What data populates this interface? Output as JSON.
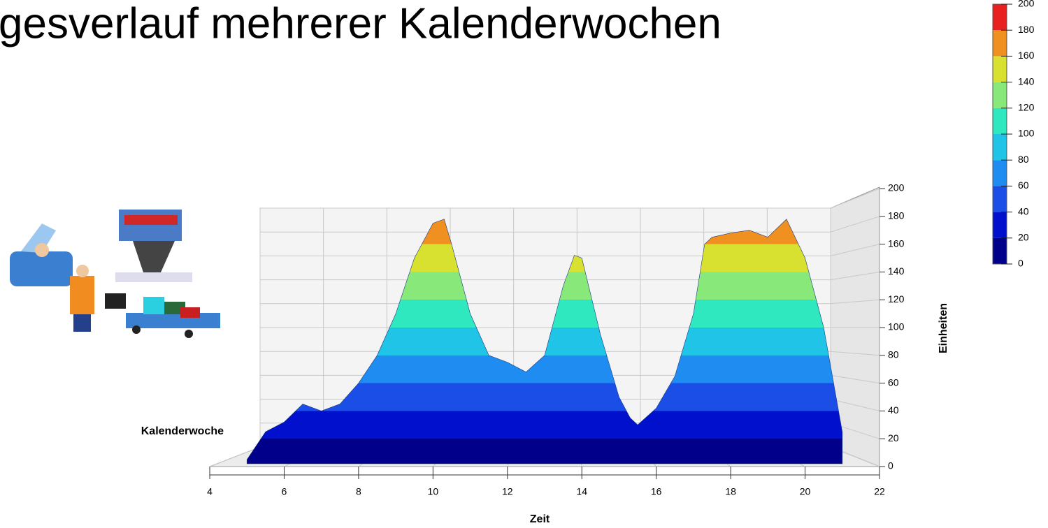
{
  "chart_data": {
    "type": "surface",
    "title": "gesverlauf mehrerer Kalenderwochen",
    "x_label": "Zeit",
    "y_label": "Einheiten",
    "depth_label": "Kalenderwoche",
    "x": [
      5,
      5.5,
      6,
      6.5,
      7,
      7.5,
      8,
      8.5,
      9,
      9.5,
      10,
      10.3,
      10.5,
      11,
      11.5,
      12,
      12.5,
      13,
      13.5,
      13.8,
      14,
      14.5,
      15,
      15.3,
      15.5,
      16,
      16.5,
      17,
      17.3,
      17.5,
      18,
      18.5,
      19,
      19.5,
      20,
      20.5,
      21
    ],
    "values": [
      5,
      25,
      32,
      45,
      40,
      45,
      60,
      80,
      110,
      150,
      175,
      178,
      160,
      110,
      80,
      75,
      68,
      80,
      130,
      152,
      150,
      95,
      50,
      35,
      30,
      42,
      65,
      110,
      160,
      165,
      168,
      170,
      165,
      178,
      150,
      100,
      25
    ],
    "xlim": [
      4,
      22
    ],
    "xticks": [
      4,
      6,
      8,
      10,
      12,
      14,
      16,
      18,
      20,
      22
    ],
    "ylim": [
      0,
      200
    ],
    "yticks": [
      0,
      20,
      40,
      60,
      80,
      100,
      120,
      140,
      160,
      180,
      200
    ],
    "colorscale": [
      "#00008b",
      "#0010cc",
      "#1a4ee6",
      "#1e8cf0",
      "#20c4e6",
      "#30e8c0",
      "#88e87a",
      "#d8e030",
      "#f09020",
      "#e82020"
    ],
    "colorbar_ticks": [
      0,
      20,
      40,
      60,
      80,
      100,
      120,
      140,
      160,
      180,
      200
    ],
    "grid": true
  }
}
